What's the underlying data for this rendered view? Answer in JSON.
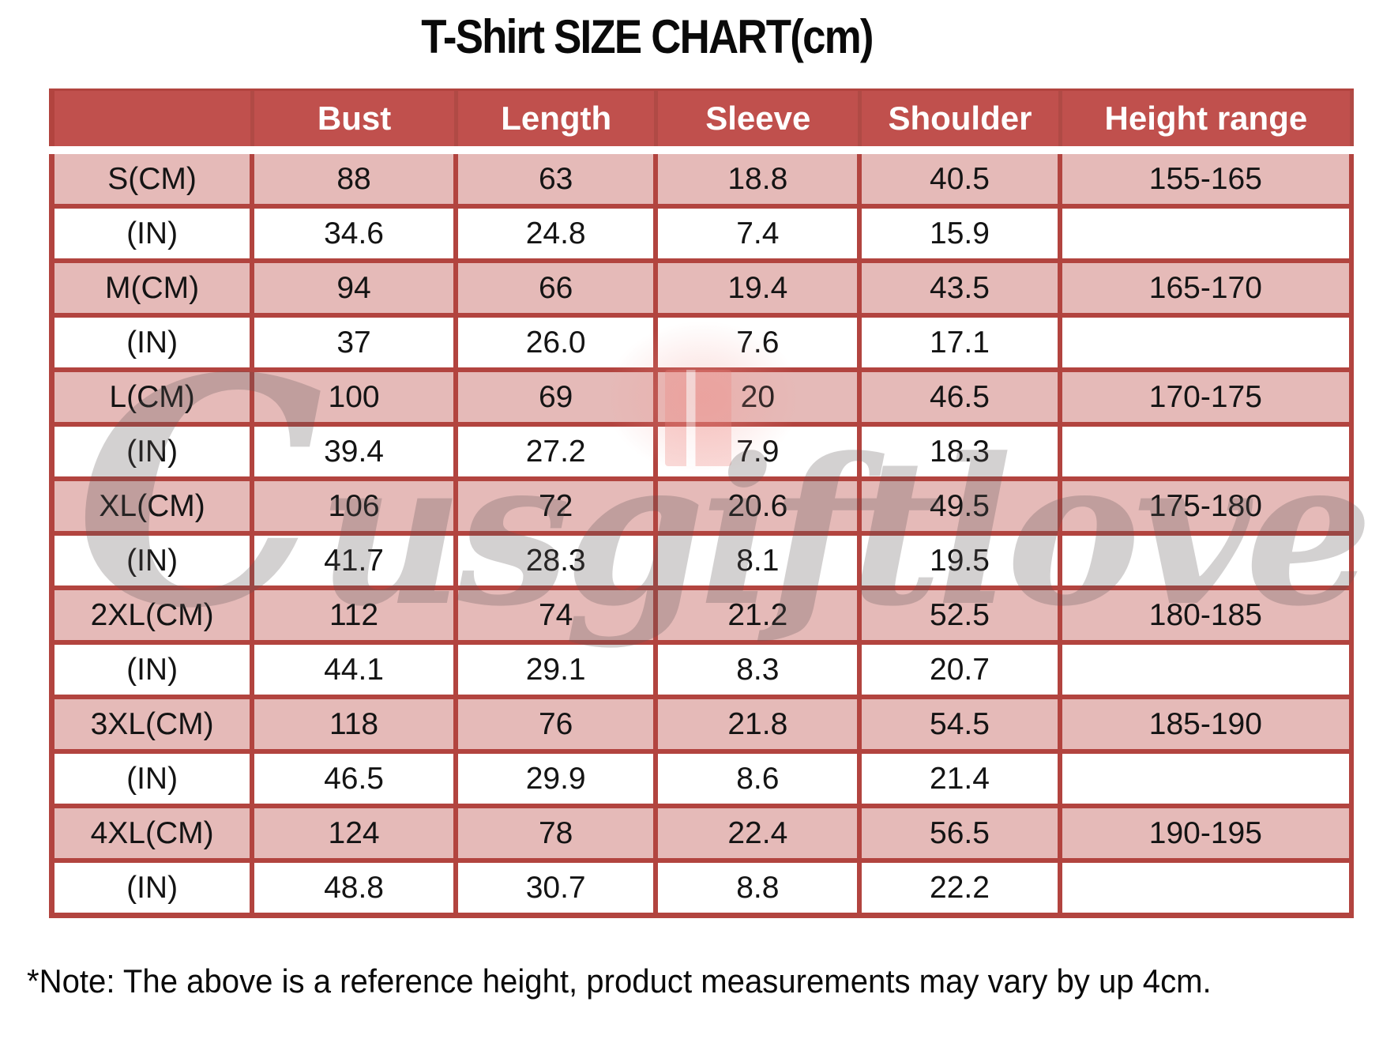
{
  "page_title": "T-Shirt SIZE CHART(cm)",
  "note": "*Note: The above is a reference height, product measurements may vary by up 4cm.",
  "watermark_text": "Cusgiftlove",
  "colors": {
    "header-bg": "#c0504d",
    "row-pink": "#e5bab8",
    "row-white": "#ffffff",
    "table-border": "#b2443f",
    "header-text": "#ffffff",
    "body-text": "#141414"
  },
  "chart_data": {
    "type": "table",
    "title": "T-Shirt SIZE CHART(cm)",
    "columns": [
      "",
      "Bust",
      "Length",
      "Sleeve",
      "Shoulder",
      "Height range"
    ],
    "rows": [
      {
        "label": "S(CM)",
        "values": [
          "88",
          "63",
          "18.8",
          "40.5",
          "155-165"
        ],
        "shaded": true
      },
      {
        "label": "(IN)",
        "values": [
          "34.6",
          "24.8",
          "7.4",
          "15.9",
          ""
        ],
        "shaded": false
      },
      {
        "label": "M(CM)",
        "values": [
          "94",
          "66",
          "19.4",
          "43.5",
          "165-170"
        ],
        "shaded": true
      },
      {
        "label": "(IN)",
        "values": [
          "37",
          "26.0",
          "7.6",
          "17.1",
          ""
        ],
        "shaded": false
      },
      {
        "label": "L(CM)",
        "values": [
          "100",
          "69",
          "20",
          "46.5",
          "170-175"
        ],
        "shaded": true
      },
      {
        "label": "(IN)",
        "values": [
          "39.4",
          "27.2",
          "7.9",
          "18.3",
          ""
        ],
        "shaded": false
      },
      {
        "label": "XL(CM)",
        "values": [
          "106",
          "72",
          "20.6",
          "49.5",
          "175-180"
        ],
        "shaded": true
      },
      {
        "label": "(IN)",
        "values": [
          "41.7",
          "28.3",
          "8.1",
          "19.5",
          ""
        ],
        "shaded": false
      },
      {
        "label": "2XL(CM)",
        "values": [
          "112",
          "74",
          "21.2",
          "52.5",
          "180-185"
        ],
        "shaded": true
      },
      {
        "label": "(IN)",
        "values": [
          "44.1",
          "29.1",
          "8.3",
          "20.7",
          ""
        ],
        "shaded": false
      },
      {
        "label": "3XL(CM)",
        "values": [
          "118",
          "76",
          "21.8",
          "54.5",
          "185-190"
        ],
        "shaded": true
      },
      {
        "label": "(IN)",
        "values": [
          "46.5",
          "29.9",
          "8.6",
          "21.4",
          ""
        ],
        "shaded": false
      },
      {
        "label": "4XL(CM)",
        "values": [
          "124",
          "78",
          "22.4",
          "56.5",
          "190-195"
        ],
        "shaded": true
      },
      {
        "label": "(IN)",
        "values": [
          "48.8",
          "30.7",
          "8.8",
          "22.2",
          ""
        ],
        "shaded": false
      }
    ]
  }
}
